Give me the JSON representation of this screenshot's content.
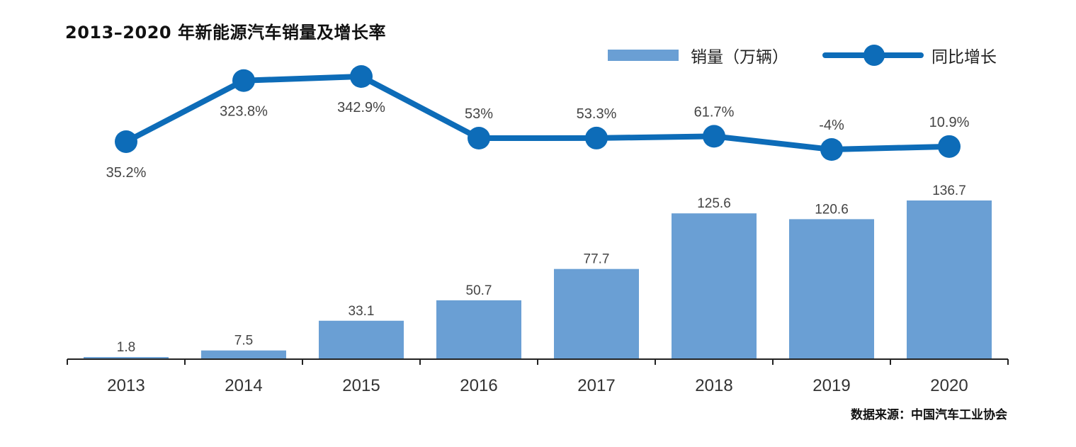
{
  "title": "2013–2020 年新能源汽车销量及增长率",
  "source": "数据来源：中国汽车工业协会",
  "colors": {
    "bar": "#6a9fd4",
    "line": "#0d6cb8",
    "axis": "#222222"
  },
  "chart_data": {
    "type": "bar",
    "title": "2013–2020 年新能源汽车销量及增长率",
    "categories": [
      "2013",
      "2014",
      "2015",
      "2016",
      "2017",
      "2018",
      "2019",
      "2020"
    ],
    "legend_position": "top-right",
    "grid": false,
    "series": [
      {
        "name": "销量（万辆）",
        "type": "bar",
        "values": [
          1.8,
          7.5,
          33.1,
          50.7,
          77.7,
          125.6,
          120.6,
          136.7
        ],
        "labels": [
          "1.8",
          "7.5",
          "33.1",
          "50.7",
          "77.7",
          "125.6",
          "120.6",
          "136.7"
        ]
      },
      {
        "name": "同比增长",
        "type": "line",
        "values": [
          35.2,
          323.8,
          342.9,
          53,
          53.3,
          61.7,
          -4,
          10.9
        ],
        "labels": [
          "35.2%",
          "323.8%",
          "342.9%",
          "53%",
          "53.3%",
          "61.7%",
          "-4%",
          "10.9%"
        ]
      }
    ]
  }
}
